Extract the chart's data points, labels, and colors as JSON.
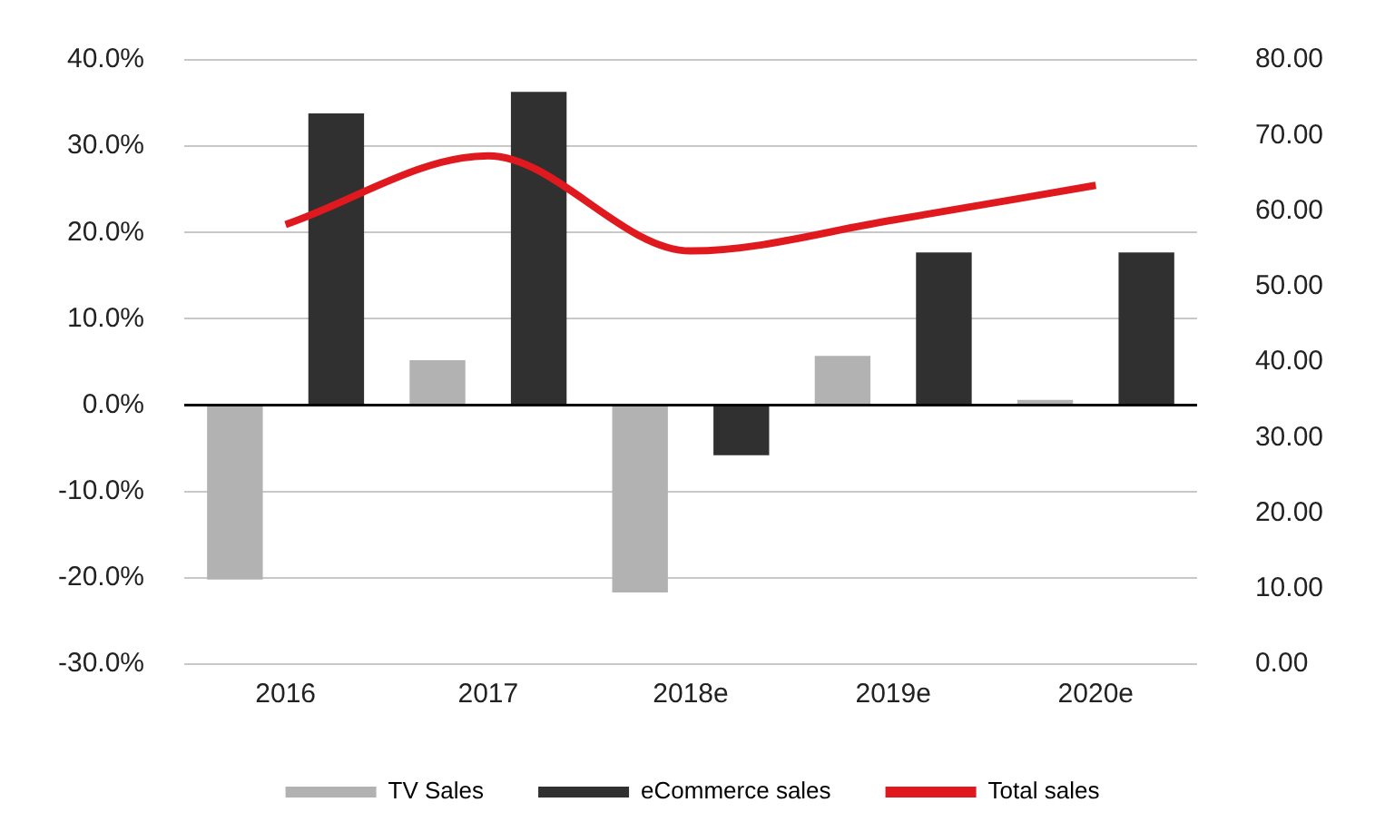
{
  "chart_data": {
    "type": "bar",
    "categories": [
      "2016",
      "2017",
      "2018e",
      "2019e",
      "2020e"
    ],
    "series": [
      {
        "name": "TV Sales",
        "color": "#b2b2b2",
        "values": [
          -20.2,
          5.2,
          -21.7,
          5.7,
          0.6
        ]
      },
      {
        "name": "eCommerce sales",
        "color": "#303030",
        "values": [
          33.8,
          36.3,
          -5.8,
          17.7,
          17.7
        ]
      },
      {
        "name": "Total sales",
        "type": "line",
        "axis": "y2",
        "color": "#e0191e",
        "values": [
          58.2,
          67.3,
          54.7,
          58.8,
          63.4
        ]
      }
    ],
    "ylim": [
      -30,
      40
    ],
    "yticks": [
      {
        "value": -30,
        "label": "-30.0%"
      },
      {
        "value": -20,
        "label": "-20.0%"
      },
      {
        "value": -10,
        "label": "-10.0%"
      },
      {
        "value": 0,
        "label": "0.0%"
      },
      {
        "value": 10,
        "label": "10.0%"
      },
      {
        "value": 20,
        "label": "20.0%"
      },
      {
        "value": 30,
        "label": "30.0%"
      },
      {
        "value": 40,
        "label": "40.0%"
      }
    ],
    "y2lim": [
      0,
      80
    ],
    "y2ticks": [
      {
        "value": 0,
        "label": "0.00"
      },
      {
        "value": 10,
        "label": "10.00"
      },
      {
        "value": 20,
        "label": "20.00"
      },
      {
        "value": 30,
        "label": "30.00"
      },
      {
        "value": 40,
        "label": "40.00"
      },
      {
        "value": 50,
        "label": "50.00"
      },
      {
        "value": 60,
        "label": "60.00"
      },
      {
        "value": 70,
        "label": "70.00"
      },
      {
        "value": 80,
        "label": "80.00"
      }
    ],
    "grid": "y",
    "legend": "bottom",
    "marker": "none"
  }
}
